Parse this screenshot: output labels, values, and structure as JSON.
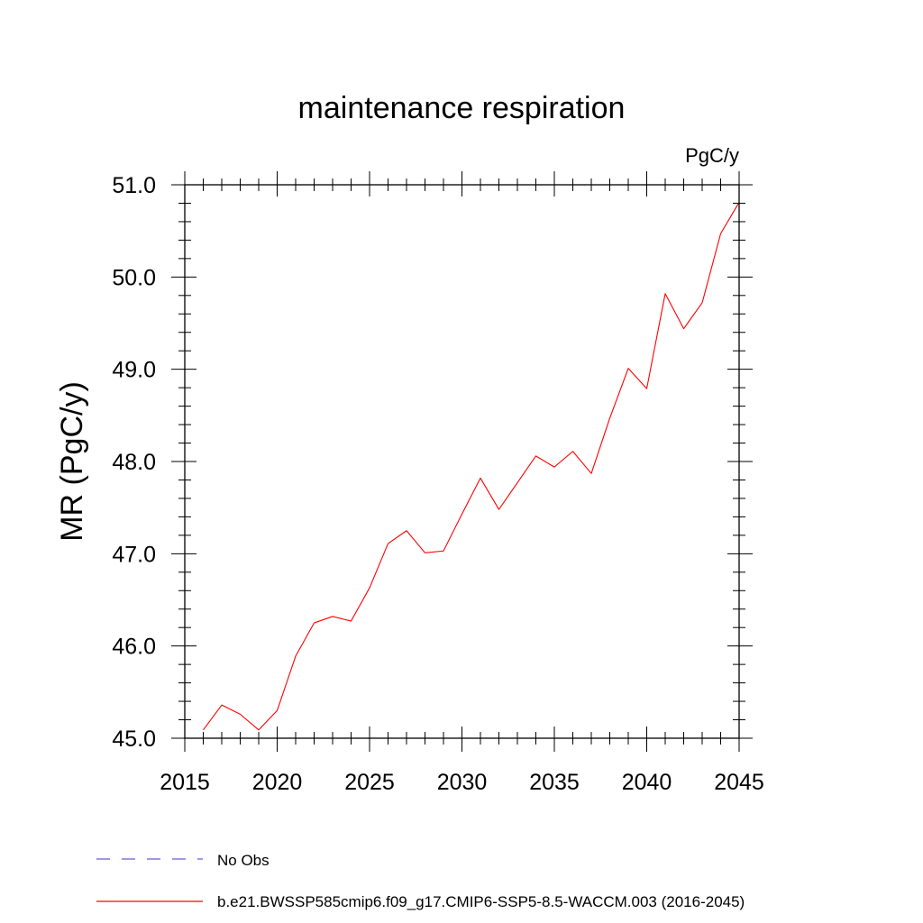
{
  "chart_data": {
    "type": "line",
    "title": "maintenance respiration",
    "units_label": "PgC/y",
    "xlabel": "",
    "ylabel": "MR  (PgC/y)",
    "xlim": [
      2015,
      2045
    ],
    "ylim": [
      45.0,
      51.0
    ],
    "x_ticks": [
      2015,
      2020,
      2025,
      2030,
      2035,
      2040,
      2045
    ],
    "x_tick_labels": [
      "2015",
      "2020",
      "2025",
      "2030",
      "2035",
      "2040",
      "2045"
    ],
    "y_ticks": [
      45.0,
      46.0,
      47.0,
      48.0,
      49.0,
      50.0,
      51.0
    ],
    "y_tick_labels": [
      "45.0",
      "46.0",
      "47.0",
      "48.0",
      "49.0",
      "50.0",
      "51.0"
    ],
    "grid": false,
    "legend_position": "bottom",
    "series": [
      {
        "name": "b.e21.BWSSP585cmip6.f09_g17.CMIP6-SSP5-8.5-WACCM.003 (2016-2045)",
        "color": "#ff0000",
        "x": [
          2016,
          2017,
          2018,
          2019,
          2020,
          2021,
          2022,
          2023,
          2024,
          2025,
          2026,
          2027,
          2028,
          2029,
          2030,
          2031,
          2032,
          2033,
          2034,
          2035,
          2036,
          2037,
          2038,
          2039,
          2040,
          2041,
          2042,
          2043,
          2044,
          2045
        ],
        "values": [
          45.09,
          45.36,
          45.26,
          45.09,
          45.3,
          45.89,
          46.25,
          46.32,
          46.27,
          46.63,
          47.11,
          47.25,
          47.01,
          47.03,
          47.43,
          47.82,
          47.48,
          47.77,
          48.06,
          47.94,
          48.11,
          47.87,
          48.47,
          49.01,
          48.79,
          49.82,
          49.44,
          49.72,
          50.47,
          50.81
        ]
      }
    ],
    "legend": [
      {
        "label": "No Obs",
        "color": "#6a5acd",
        "style": "dashed"
      },
      {
        "label": "b.e21.BWSSP585cmip6.f09_g17.CMIP6-SSP5-8.5-WACCM.003 (2016-2045)",
        "color": "#ff0000",
        "style": "solid"
      }
    ]
  }
}
